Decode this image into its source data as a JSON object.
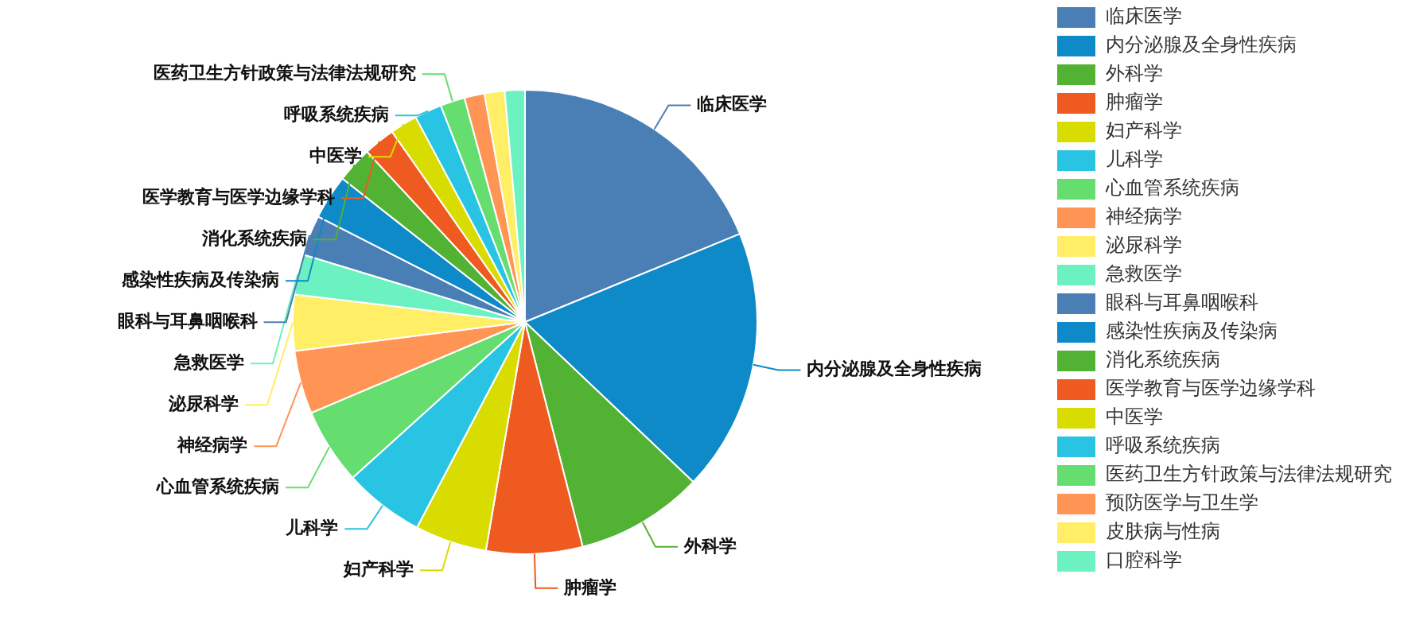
{
  "chart_data": {
    "type": "pie",
    "categories": [
      "临床医学",
      "内分泌腺及全身性疾病",
      "外科学",
      "肿瘤学",
      "妇产科学",
      "儿科学",
      "心血管系统疾病",
      "神经病学",
      "泌尿科学",
      "急救医学",
      "眼科与耳鼻咽喉科",
      "感染性疾病及传染病",
      "消化系统疾病",
      "医学教育与医学边缘学科",
      "中医学",
      "呼吸系统疾病",
      "医药卫生方针政策与法律法规研究",
      "预防医学与卫生学",
      "皮肤病与性病",
      "口腔科学"
    ],
    "values": [
      18.8,
      18.3,
      8.9,
      6.7,
      5.0,
      5.6,
      5.3,
      4.4,
      3.9,
      2.8,
      2.8,
      3.1,
      2.5,
      2.2,
      1.9,
      1.9,
      1.7,
      1.4,
      1.4,
      1.4
    ],
    "colors": [
      "#4a7fb5",
      "#0e8ac9",
      "#52b233",
      "#ee5a1f",
      "#d9dc00",
      "#29c4e4",
      "#66dd6f",
      "#ff9455",
      "#ffee66",
      "#6cf2c0",
      "#4a7fb5",
      "#0e8ac9",
      "#52b233",
      "#ee5a1f",
      "#d9dc00",
      "#29c4e4",
      "#66dd6f",
      "#ff9455",
      "#ffee66",
      "#6cf2c0"
    ],
    "legend": "top right"
  }
}
